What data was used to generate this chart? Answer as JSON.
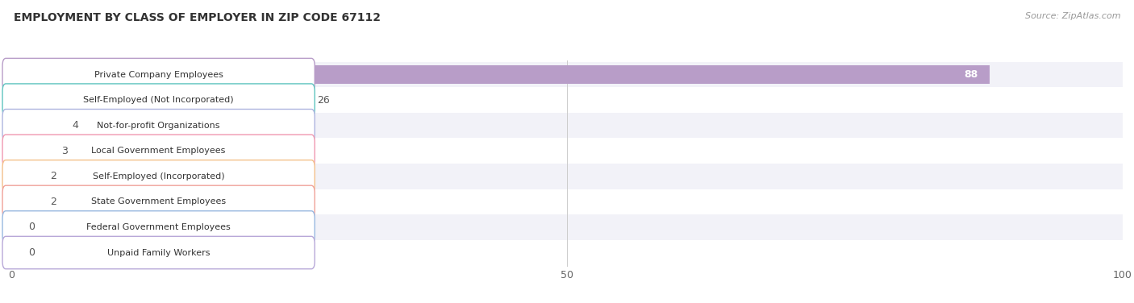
{
  "title": "EMPLOYMENT BY CLASS OF EMPLOYER IN ZIP CODE 67112",
  "source": "Source: ZipAtlas.com",
  "categories": [
    "Private Company Employees",
    "Self-Employed (Not Incorporated)",
    "Not-for-profit Organizations",
    "Local Government Employees",
    "Self-Employed (Incorporated)",
    "State Government Employees",
    "Federal Government Employees",
    "Unpaid Family Workers"
  ],
  "values": [
    88,
    26,
    4,
    3,
    2,
    2,
    0,
    0
  ],
  "bar_colors": [
    "#b89dc8",
    "#5ec4bf",
    "#aeb4df",
    "#f098b0",
    "#f4c08a",
    "#f0a098",
    "#98b8e0",
    "#b8a8d8"
  ],
  "label_border_colors": [
    "#b89dc8",
    "#5ec4bf",
    "#aeb4df",
    "#f098b0",
    "#f4c08a",
    "#f0a098",
    "#98b8e0",
    "#b8a8d8"
  ],
  "row_bg_even": "#f2f2f8",
  "row_bg_odd": "#ffffff",
  "xlim": [
    0,
    100
  ],
  "xticks": [
    0,
    50,
    100
  ],
  "title_fontsize": 10,
  "source_fontsize": 8,
  "value_label_fontsize": 9,
  "cat_label_fontsize": 8,
  "tick_fontsize": 9,
  "background_color": "#ffffff",
  "grid_color": "#cccccc",
  "value_88_color": "#ffffff",
  "value_other_color": "#555555"
}
